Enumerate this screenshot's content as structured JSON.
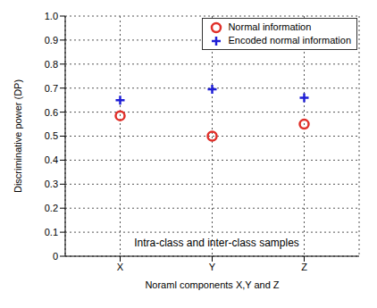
{
  "chart_data": {
    "type": "scatter",
    "categories": [
      "X",
      "Y",
      "Z"
    ],
    "series": [
      {
        "name": "Normal information",
        "color": "#e0302a",
        "marker": "circle",
        "values": [
          0.585,
          0.5,
          0.55
        ]
      },
      {
        "name": "Encoded normal information",
        "color": "#1f1fd6",
        "marker": "plus",
        "values": [
          0.65,
          0.695,
          0.66
        ]
      }
    ],
    "ylim": [
      0,
      1
    ],
    "yticks": [
      0,
      0.1,
      0.2,
      0.3,
      0.4,
      0.5,
      0.6,
      0.7,
      0.8,
      0.9,
      {
        "value": 1,
        "label": "1.0"
      }
    ],
    "ylabel": "Discriminative power (DP)",
    "xlabel": "Noraml components X,Y and Z",
    "annotation": "Intra-class and inter-class samples",
    "legend": "upper right",
    "grid": true
  }
}
